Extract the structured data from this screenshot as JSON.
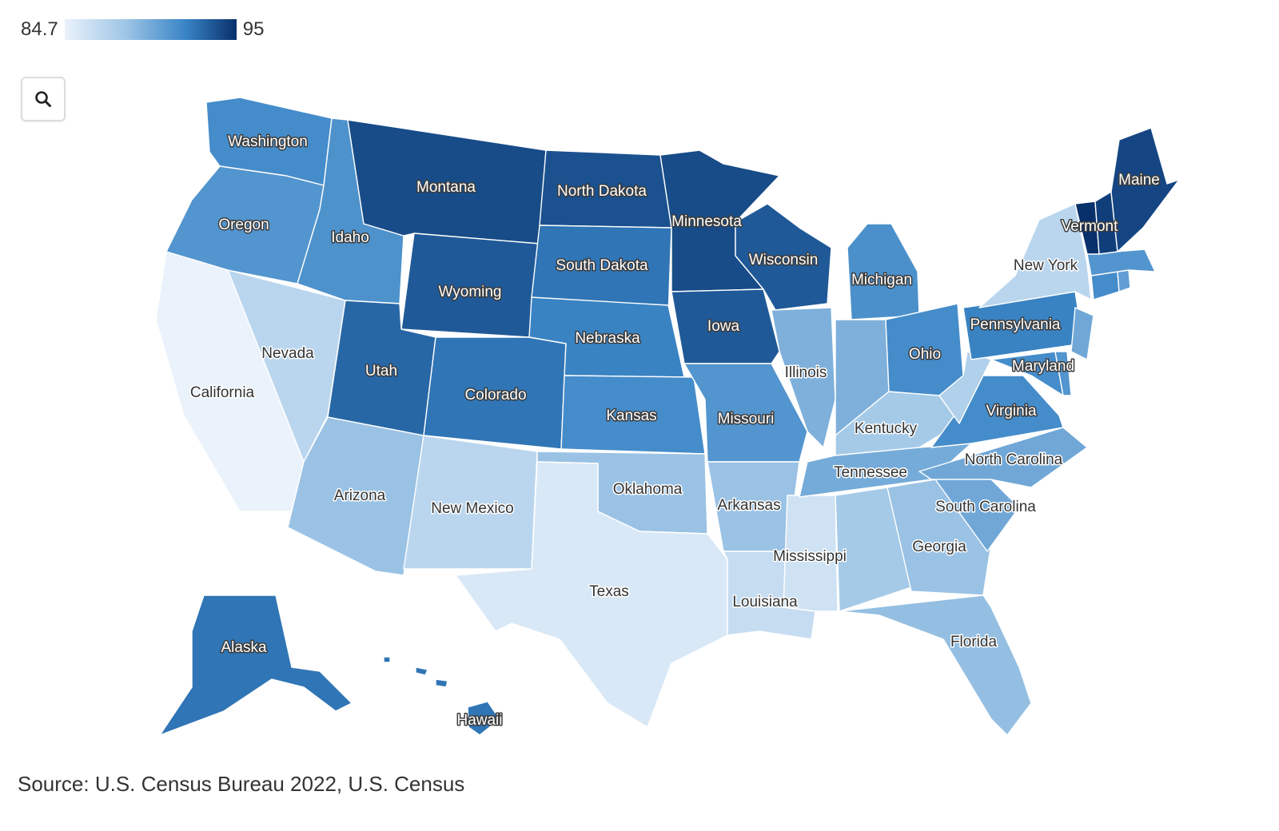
{
  "legend": {
    "min_label": "84.7",
    "max_label": "95",
    "min": 84.7,
    "max": 95,
    "color_low": "#eaf2fb",
    "color_high": "#08306b"
  },
  "zoom_button": {
    "icon": "search-icon"
  },
  "source": "Source: U.S. Census Bureau 2022, U.S. Census",
  "chart_data": {
    "type": "choropleth",
    "scale": {
      "min": 84.7,
      "max": 95,
      "palette": "blues"
    },
    "states": [
      {
        "name": "Washington",
        "value": 91.5
      },
      {
        "name": "Oregon",
        "value": 91.0
      },
      {
        "name": "California",
        "value": 84.7
      },
      {
        "name": "Nevada",
        "value": 87.0
      },
      {
        "name": "Idaho",
        "value": 91.2
      },
      {
        "name": "Montana",
        "value": 94.0
      },
      {
        "name": "Wyoming",
        "value": 93.5
      },
      {
        "name": "Utah",
        "value": 93.0
      },
      {
        "name": "Arizona",
        "value": 88.5
      },
      {
        "name": "Colorado",
        "value": 92.5
      },
      {
        "name": "New Mexico",
        "value": 87.0
      },
      {
        "name": "North Dakota",
        "value": 93.8
      },
      {
        "name": "South Dakota",
        "value": 92.5
      },
      {
        "name": "Nebraska",
        "value": 92.0
      },
      {
        "name": "Kansas",
        "value": 91.5
      },
      {
        "name": "Oklahoma",
        "value": 88.5
      },
      {
        "name": "Texas",
        "value": 85.5
      },
      {
        "name": "Minnesota",
        "value": 94.0
      },
      {
        "name": "Iowa",
        "value": 93.5
      },
      {
        "name": "Missouri",
        "value": 91.0
      },
      {
        "name": "Arkansas",
        "value": 88.5
      },
      {
        "name": "Louisiana",
        "value": 86.5
      },
      {
        "name": "Wisconsin",
        "value": 93.5
      },
      {
        "name": "Illinois",
        "value": 89.5
      },
      {
        "name": "Mississippi",
        "value": 86.0
      },
      {
        "name": "Michigan",
        "value": 91.3
      },
      {
        "name": "Indiana",
        "value": 89.5
      },
      {
        "name": "Kentucky",
        "value": 88.0
      },
      {
        "name": "Tennessee",
        "value": 89.8
      },
      {
        "name": "Alabama",
        "value": 88.0
      },
      {
        "name": "Ohio",
        "value": 91.5
      },
      {
        "name": "Georgia",
        "value": 88.5
      },
      {
        "name": "Florida",
        "value": 88.7
      },
      {
        "name": "South Carolina",
        "value": 90.0
      },
      {
        "name": "North Carolina",
        "value": 90.0
      },
      {
        "name": "Virginia",
        "value": 91.5
      },
      {
        "name": "West Virginia",
        "value": 87.5
      },
      {
        "name": "Pennsylvania",
        "value": 92.0
      },
      {
        "name": "New York",
        "value": 87.0
      },
      {
        "name": "Maryland",
        "value": 91.5
      },
      {
        "name": "New Jersey",
        "value": 90.0
      },
      {
        "name": "Delaware",
        "value": 91.0
      },
      {
        "name": "Connecticut",
        "value": 91.5
      },
      {
        "name": "Rhode Island",
        "value": 90.5
      },
      {
        "name": "Massachusetts",
        "value": 91.0
      },
      {
        "name": "Vermont",
        "value": 95.0
      },
      {
        "name": "New Hampshire",
        "value": 94.5
      },
      {
        "name": "Maine",
        "value": 94.2
      },
      {
        "name": "Alaska",
        "value": 92.5
      },
      {
        "name": "Hawaii",
        "value": 92.5
      }
    ]
  }
}
